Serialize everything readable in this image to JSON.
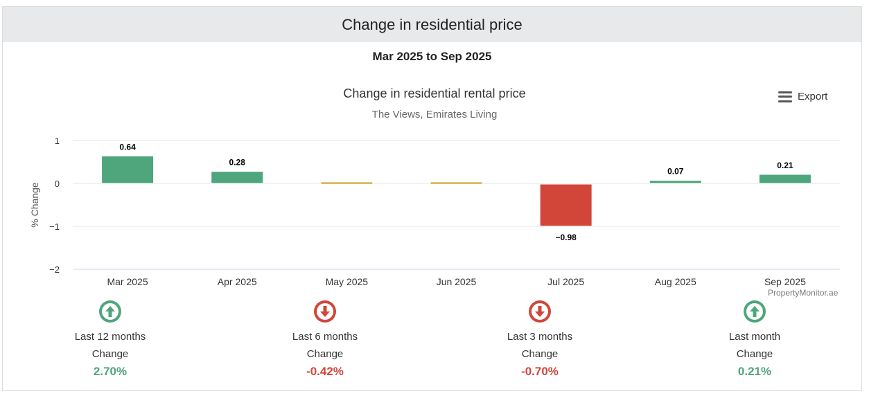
{
  "header": {
    "title": "Change in residential price"
  },
  "date_range": "Mar 2025 to Sep 2025",
  "export_label": "Export",
  "credit": "PropertyMonitor.ae",
  "colors": {
    "positive": "#4fa57c",
    "negative": "#d2463a",
    "neutral": "#c99a1f",
    "grid": "#e6e6e6",
    "axis": "#ccd6eb"
  },
  "chart_data": {
    "type": "bar",
    "title": "Change in residential rental price",
    "subtitle": "The Views, Emirates Living",
    "xlabel": "",
    "ylabel": "% Change",
    "ylim": [
      -2,
      1
    ],
    "yticks": [
      "1",
      "0",
      "−1",
      "−2"
    ],
    "categories": [
      "Mar 2025",
      "Apr 2025",
      "May 2025",
      "Jun 2025",
      "Jul 2025",
      "Aug 2025",
      "Sep 2025"
    ],
    "values": [
      0.64,
      0.28,
      0,
      0,
      -0.98,
      0.07,
      0.21
    ],
    "data_labels": [
      "0.64",
      "0.28",
      "",
      "",
      "−0.98",
      "0.07",
      "0.21"
    ],
    "grid": true
  },
  "stats": [
    {
      "direction": "up",
      "label": "Last 12 months",
      "sublabel": "Change",
      "value": "2.70%"
    },
    {
      "direction": "down",
      "label": "Last 6 months",
      "sublabel": "Change",
      "value": "-0.42%"
    },
    {
      "direction": "down",
      "label": "Last 3 months",
      "sublabel": "Change",
      "value": "-0.70%"
    },
    {
      "direction": "up",
      "label": "Last month",
      "sublabel": "Change",
      "value": "0.21%"
    }
  ]
}
